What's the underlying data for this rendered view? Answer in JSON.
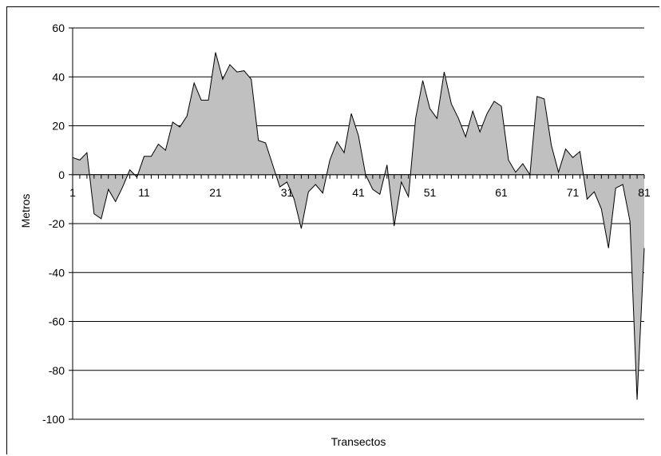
{
  "chart_data": {
    "type": "area",
    "title": "",
    "xlabel": "Transectos",
    "ylabel": "Metros",
    "ylim": [
      -100,
      60
    ],
    "xlim": [
      1,
      81
    ],
    "grid": true,
    "y_ticks": [
      60,
      40,
      20,
      0,
      -20,
      -40,
      -60,
      -80,
      -100
    ],
    "x_ticks": [
      1,
      11,
      21,
      31,
      41,
      51,
      61,
      71,
      81
    ],
    "fill_color": "#c0c0c0",
    "line_color": "#000000",
    "x": [
      1,
      2,
      3,
      4,
      5,
      6,
      7,
      8,
      9,
      10,
      11,
      12,
      13,
      14,
      15,
      16,
      17,
      18,
      19,
      20,
      21,
      22,
      23,
      24,
      25,
      26,
      27,
      28,
      29,
      30,
      31,
      32,
      33,
      34,
      35,
      36,
      37,
      38,
      39,
      40,
      41,
      42,
      43,
      44,
      45,
      46,
      47,
      48,
      49,
      50,
      51,
      52,
      53,
      54,
      55,
      56,
      57,
      58,
      59,
      60,
      61,
      62,
      63,
      64,
      65,
      66,
      67,
      68,
      69,
      70,
      71,
      72,
      73,
      74,
      75,
      76,
      77,
      78,
      79,
      80,
      81
    ],
    "values": [
      7,
      6,
      9,
      -16,
      -18,
      -6,
      -11,
      -5,
      2,
      -1,
      7.5,
      7.5,
      12.5,
      10,
      21.5,
      19.5,
      24,
      37.5,
      30.5,
      30.5,
      50,
      39,
      45,
      42,
      42.5,
      39,
      14,
      13,
      4,
      -5,
      -3,
      -10,
      -22,
      -7,
      -4,
      -7.5,
      6,
      13.5,
      9,
      25,
      16,
      0,
      -6,
      -8,
      4,
      -21,
      -3,
      -9,
      23,
      38.5,
      27,
      23,
      42,
      29,
      23,
      15.5,
      26,
      17.5,
      25,
      30,
      28,
      6,
      1,
      4.5,
      0,
      32,
      31,
      12,
      1,
      10.5,
      7,
      9.5,
      -10,
      -7,
      -14,
      -30,
      -5.5,
      -4,
      -19,
      -92,
      -30
    ]
  }
}
